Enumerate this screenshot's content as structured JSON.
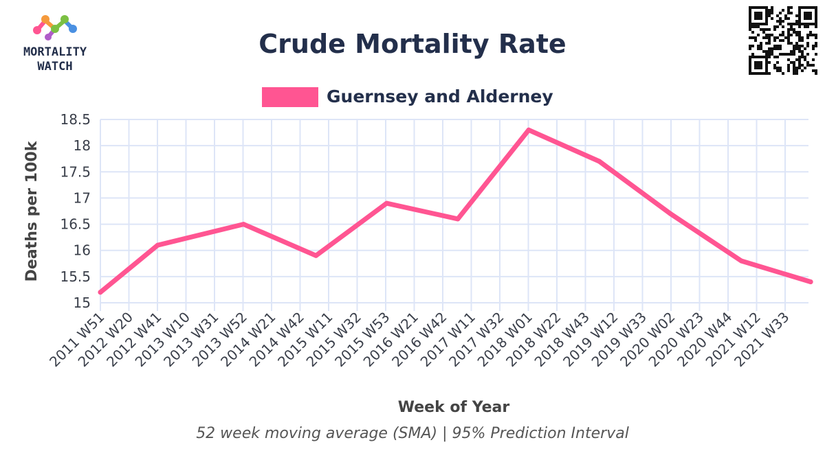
{
  "logo": {
    "line1": "MORTALITY",
    "line2": "WATCH"
  },
  "qr_code": {
    "icon": "qr-code-icon"
  },
  "chart_data": {
    "type": "line",
    "title": "Crude Mortality Rate",
    "xlabel": "Week of Year",
    "ylabel": "Deaths per 100k",
    "subtitle": "52 week moving average (SMA) | 95% Prediction Interval",
    "ylim": [
      15,
      18.5
    ],
    "y_ticks": [
      "15",
      "15.5",
      "16",
      "16.5",
      "17",
      "17.5",
      "18",
      "18.5"
    ],
    "x_tick_labels": [
      "2011 W51",
      "2012 W20",
      "2012 W41",
      "2013 W10",
      "2013 W31",
      "2013 W52",
      "2014 W21",
      "2014 W42",
      "2015 W11",
      "2015 W32",
      "2015 W53",
      "2016 W21",
      "2016 W42",
      "2017 W11",
      "2017 W32",
      "2018 W01",
      "2018 W22",
      "2018 W43",
      "2019 W12",
      "2019 W33",
      "2020 W02",
      "2020 W23",
      "2020 W44",
      "2021 W12",
      "2021 W33"
    ],
    "grid": true,
    "legend_position": "top-center",
    "series": [
      {
        "name": "Guernsey and Alderney",
        "color": "#ff5592",
        "x": [
          "2011 W51",
          "2012 W41",
          "2013 W52",
          "2015 W01",
          "2015 W53",
          "2017 W01",
          "2018 W01",
          "2018 W53",
          "2020 W01",
          "2021 W01",
          "2021 W52"
        ],
        "values": [
          15.2,
          16.1,
          16.5,
          15.9,
          16.9,
          16.6,
          18.3,
          17.7,
          16.7,
          15.8,
          15.4
        ]
      }
    ]
  }
}
